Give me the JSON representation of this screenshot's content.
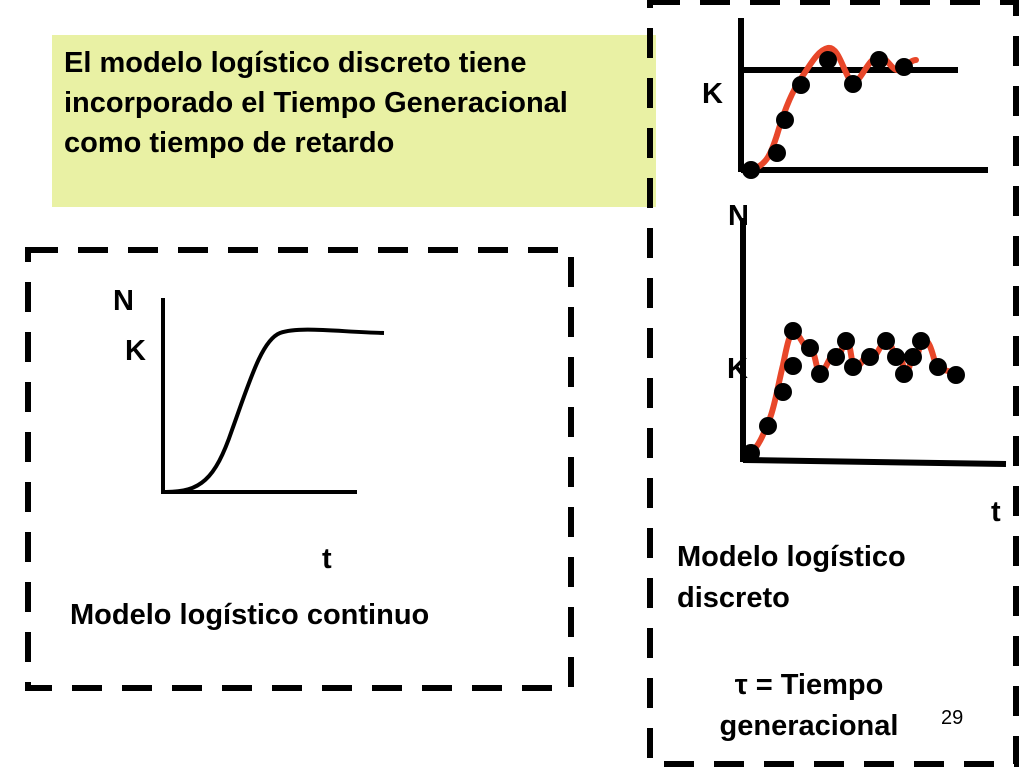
{
  "note": {
    "text": "El modelo logístico discreto tiene incorporado el Tiempo Generacional como tiempo de retardo",
    "background": "#e9f1a4"
  },
  "continuous_panel": {
    "y_label": "N",
    "k_label": "K",
    "x_label": "t",
    "caption": "Modelo logístico continuo"
  },
  "discrete_panel": {
    "top_k_label": "K",
    "y_label": "N",
    "bottom_k_label": "K",
    "x_label": "t",
    "caption": "Modelo logístico discreto",
    "tau_note": "τ = Tiempo generacional"
  },
  "page_number": "29",
  "colors": {
    "curve": "#e8472a",
    "line": "#000000",
    "dots": "#000000"
  }
}
